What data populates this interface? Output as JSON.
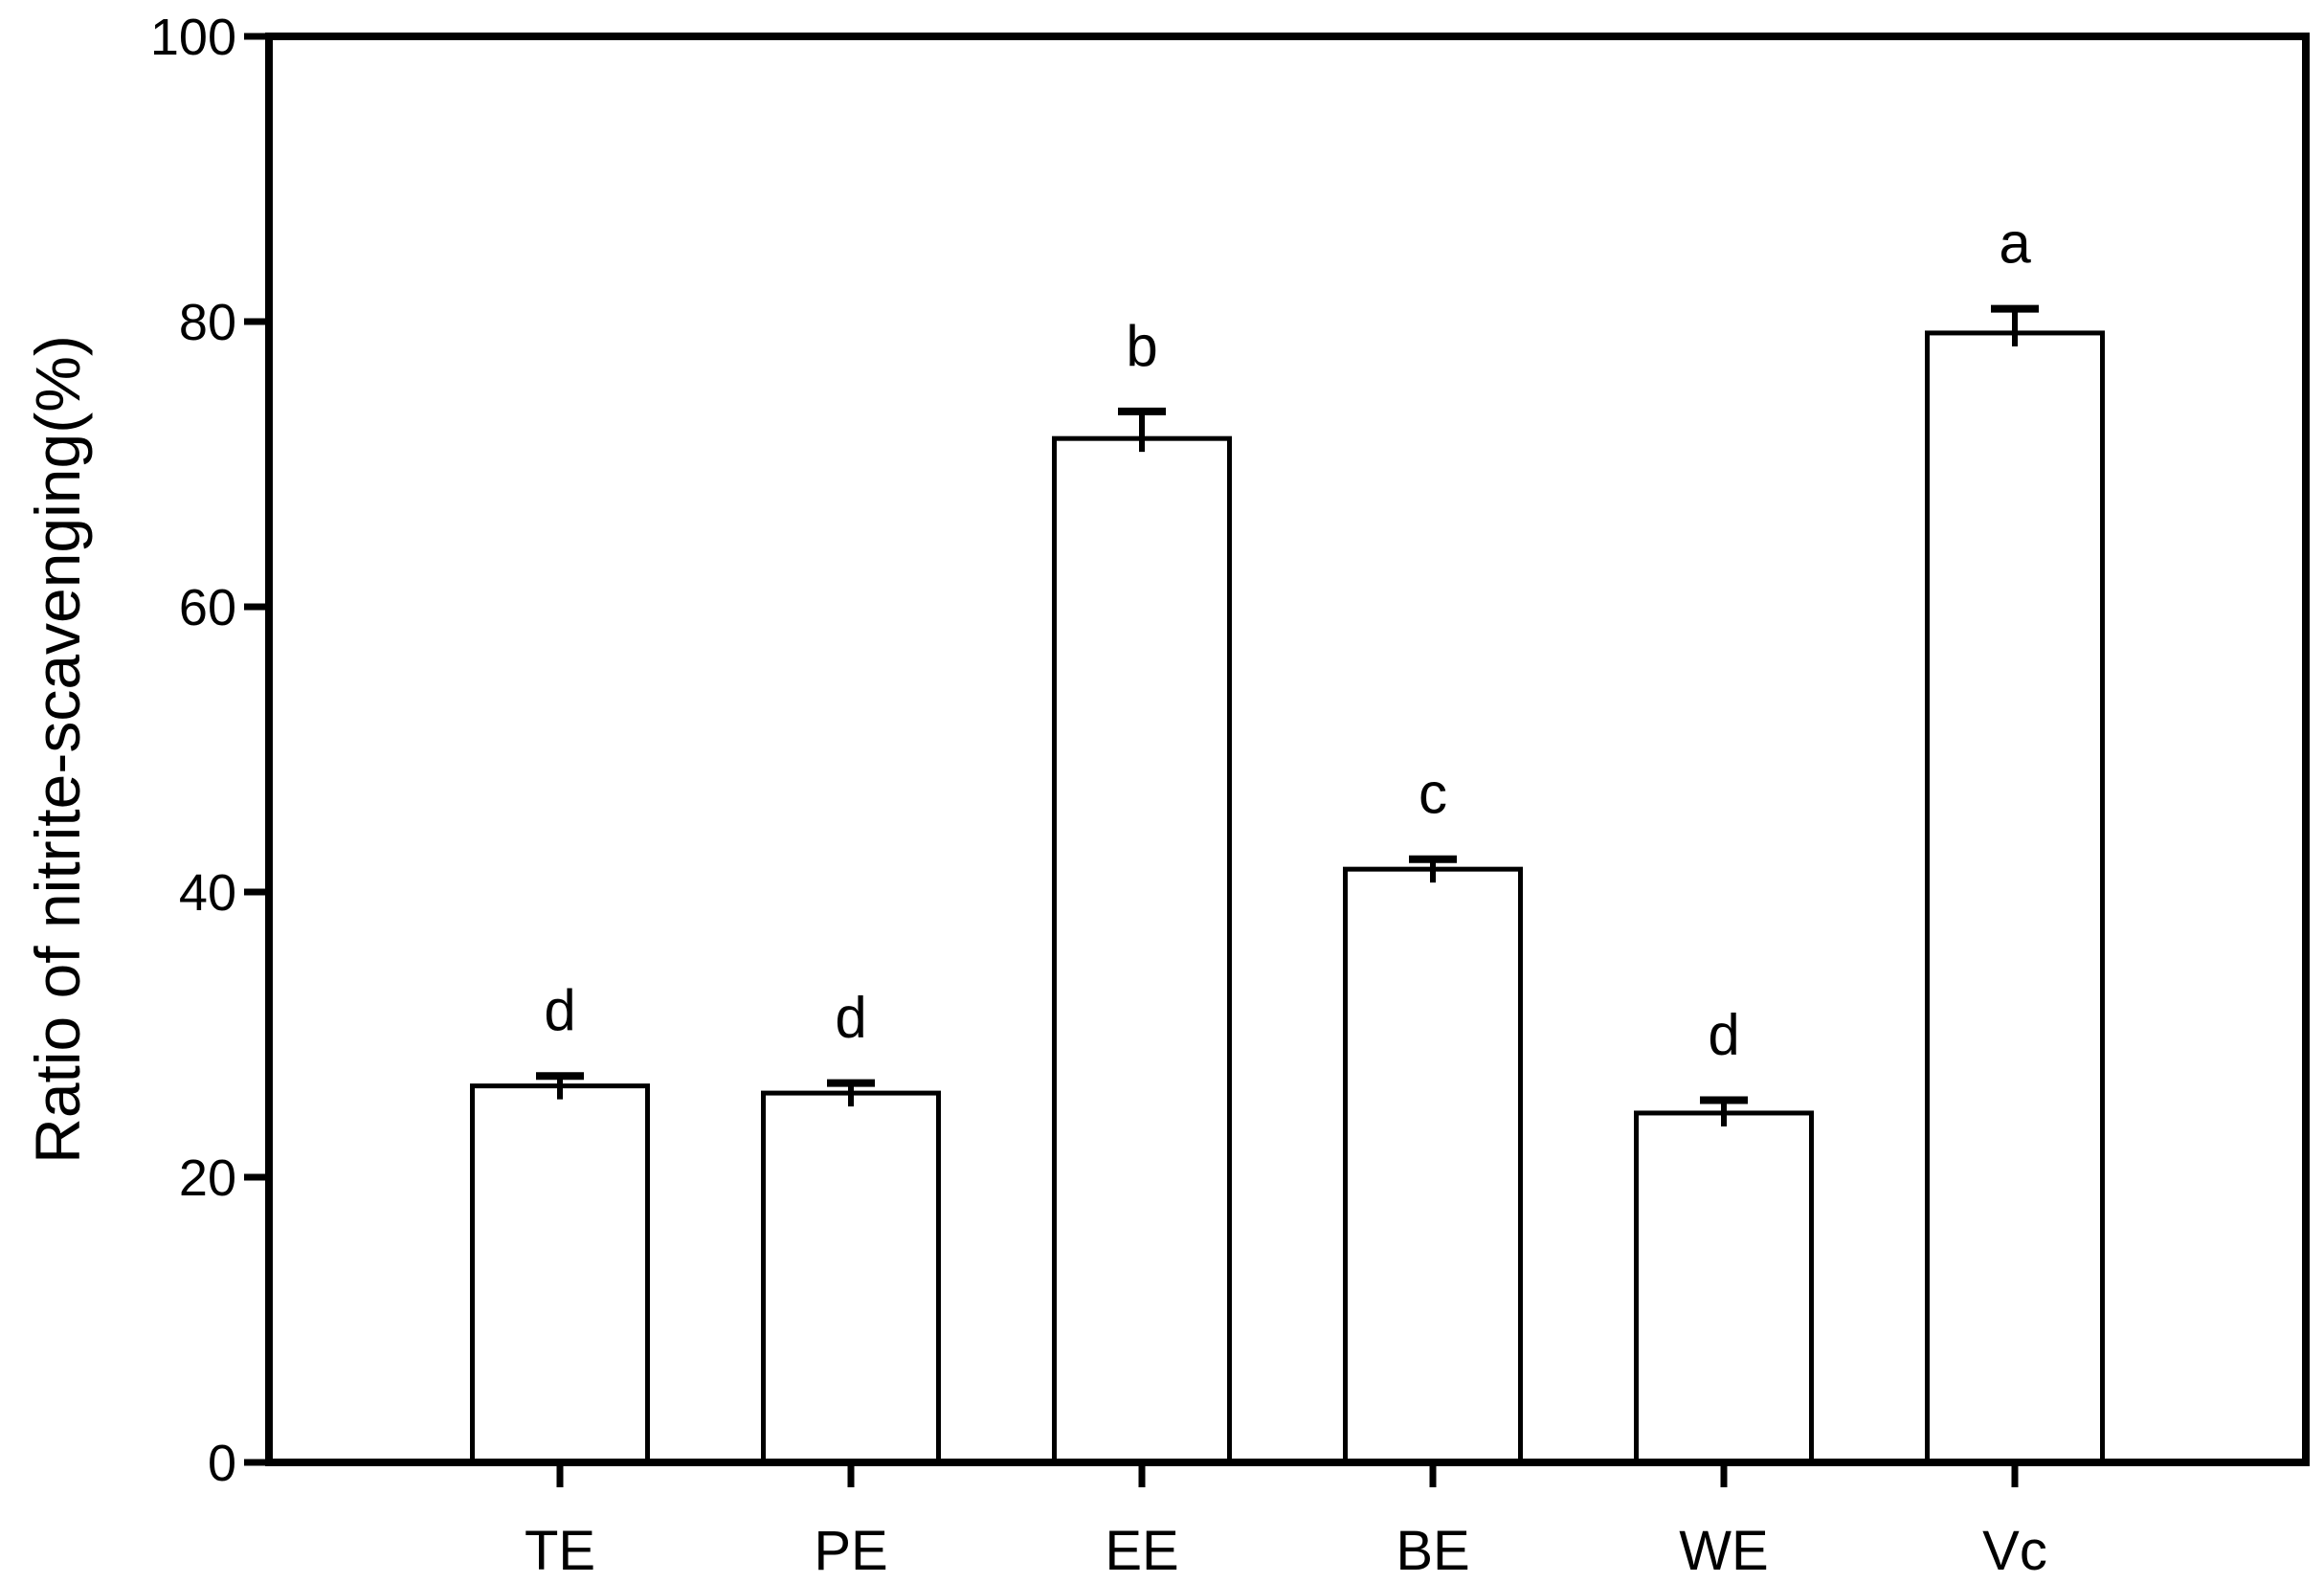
{
  "figure": {
    "background_color": "#ffffff",
    "ink_color": "#000000"
  },
  "chart_data": {
    "type": "bar",
    "title": "",
    "xlabel": "",
    "ylabel": "Ratio of nitrite-scavenging(%)",
    "ylim": [
      0,
      100
    ],
    "yticks": [
      0,
      20,
      40,
      60,
      80,
      100
    ],
    "grid": false,
    "legend": "none",
    "frame": "full-box",
    "categories": [
      "TE",
      "PE",
      "EE",
      "BE",
      "WE",
      "Vc"
    ],
    "series": [
      {
        "name": "Ratio of nitrite-scavenging",
        "values": [
          26.4,
          25.9,
          71.8,
          41.6,
          24.5,
          79.2
        ],
        "errors_plus": [
          0.7,
          0.7,
          1.9,
          0.7,
          0.9,
          1.7
        ],
        "significance_letters": [
          "d",
          "d",
          "b",
          "c",
          "d",
          "a"
        ]
      }
    ],
    "bar_fill": "#ffffff",
    "bar_stroke": "#000000"
  }
}
